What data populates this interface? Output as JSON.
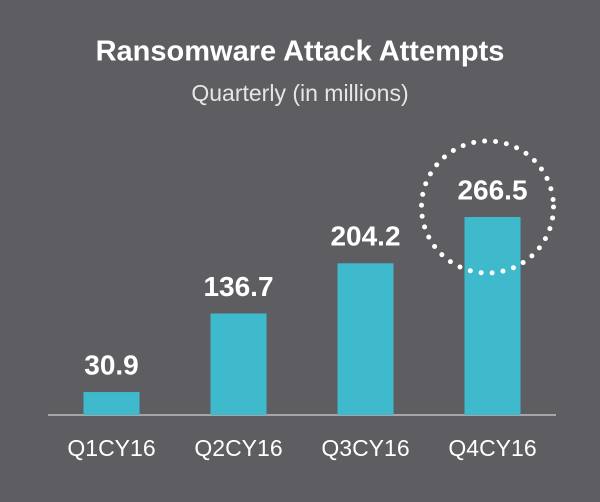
{
  "chart_data": {
    "type": "bar",
    "title": "Ransomware Attack Attempts",
    "subtitle": "Quarterly (in millions)",
    "categories": [
      "Q1CY16",
      "Q2CY16",
      "Q3CY16",
      "Q4CY16"
    ],
    "values": [
      30.9,
      136.7,
      204.2,
      266.5
    ],
    "color": "#3fb9cc"
  }
}
